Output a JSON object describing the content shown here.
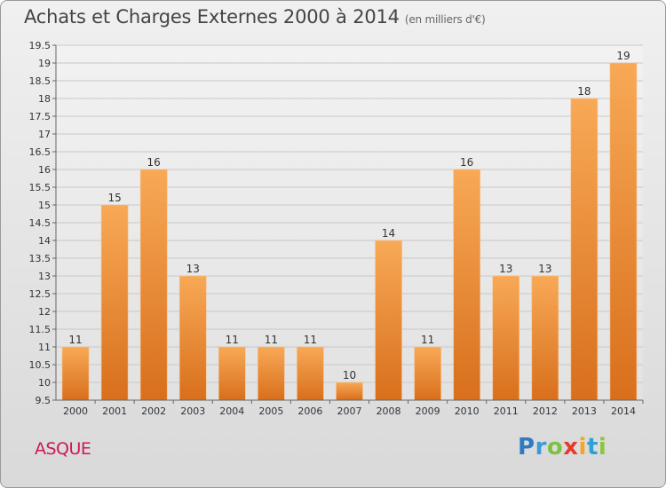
{
  "title": "Achats et Charges Externes 2000 à 2014",
  "subtitle": "(en milliers d'€)",
  "commune": "ASQUE",
  "logo": {
    "letters": [
      "P",
      "r",
      "o",
      "x",
      "i",
      "t",
      "i"
    ],
    "colors": [
      "#2e7bc4",
      "#3a9bd9",
      "#7cc242",
      "#e63a2e",
      "#f5a623",
      "#2ea0d6",
      "#8cc63e"
    ]
  },
  "chart_data": {
    "type": "bar",
    "categories": [
      "2000",
      "2001",
      "2002",
      "2003",
      "2004",
      "2005",
      "2006",
      "2007",
      "2008",
      "2009",
      "2010",
      "2011",
      "2012",
      "2013",
      "2014"
    ],
    "values": [
      11,
      15,
      16,
      13,
      11,
      11,
      11,
      10,
      14,
      11,
      16,
      13,
      13,
      18,
      19
    ],
    "ylim": [
      9.5,
      19.5
    ],
    "yticks": [
      "9.5",
      "10",
      "10.5",
      "11",
      "11.5",
      "12",
      "12.5",
      "13",
      "13.5",
      "14",
      "14.5",
      "15",
      "15.5",
      "16",
      "16.5",
      "17",
      "17.5",
      "18",
      "18.5",
      "19",
      "19.5"
    ],
    "grid": true,
    "bar_color": "#f0923a"
  }
}
